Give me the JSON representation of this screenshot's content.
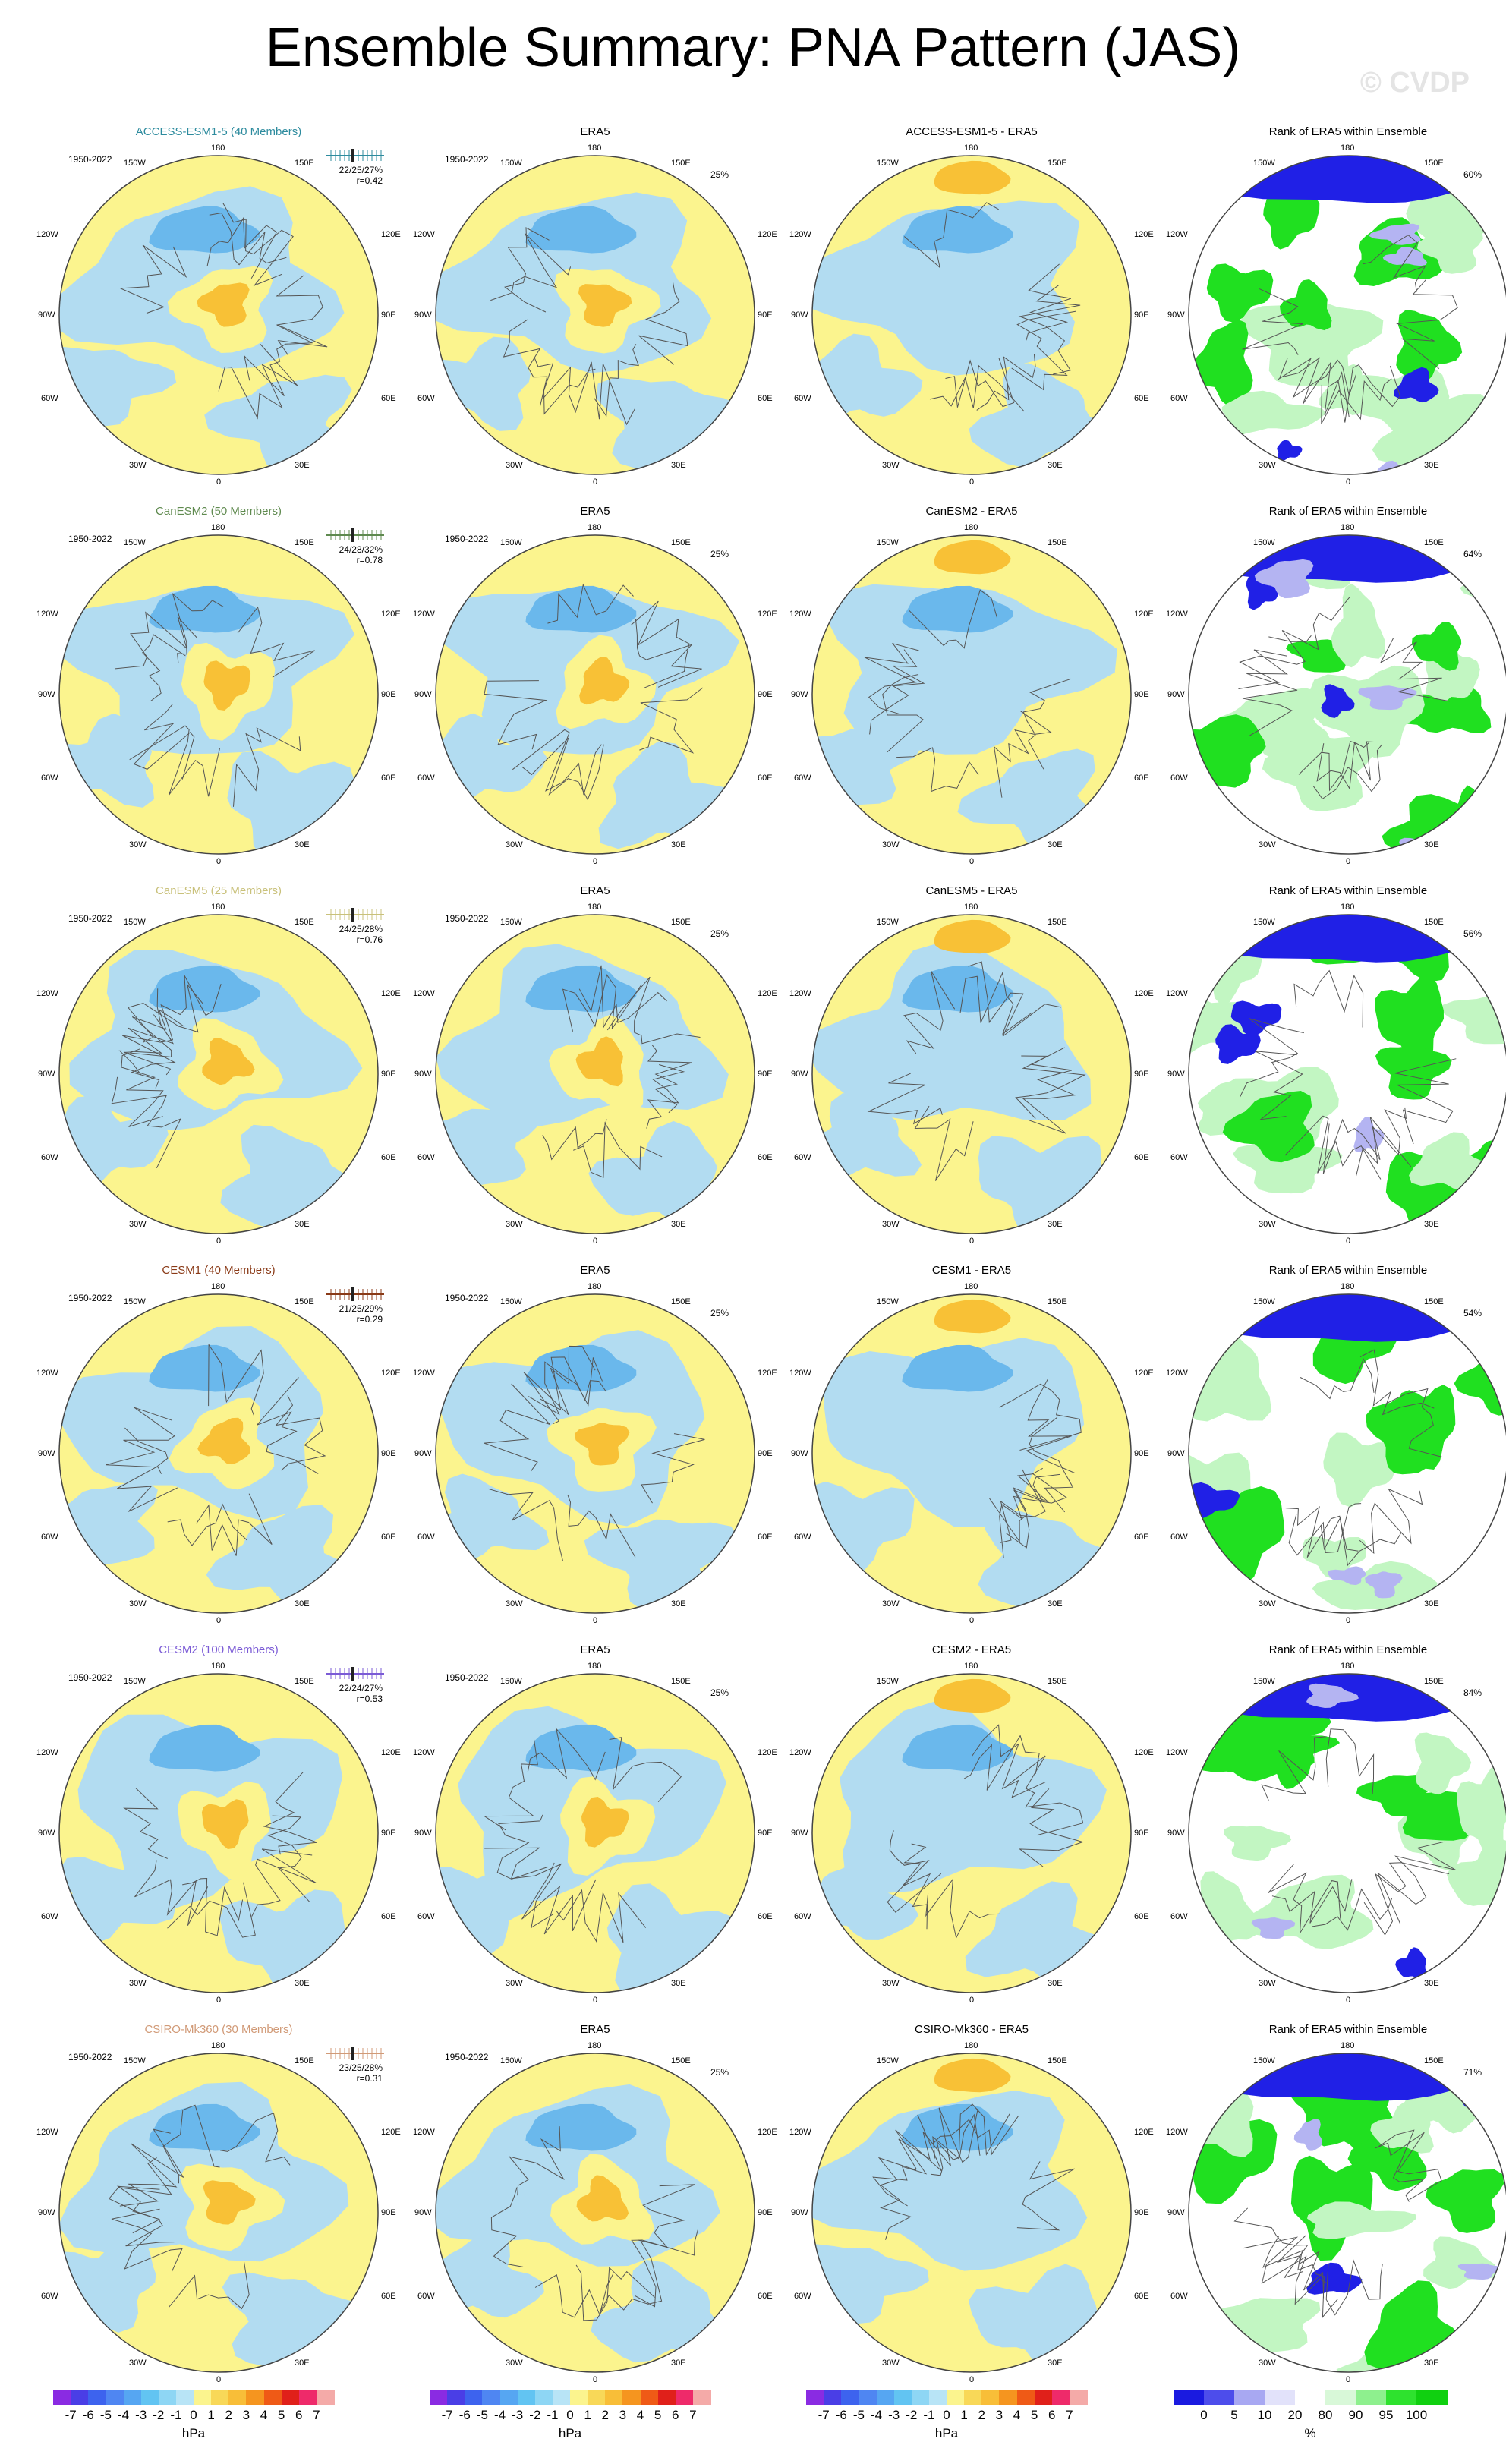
{
  "title": "Ensemble Summary: PNA Pattern (JAS)",
  "watermark": "© CVDP",
  "period": "1950-2022",
  "era5_title": "ERA5",
  "rank_title": "Rank of ERA5 within Ensemble",
  "era5_pct": "25%",
  "lon_labels": {
    "top": "180",
    "tl": "150W",
    "tr": "150E",
    "ul": "120W",
    "ur": "120E",
    "ml": "90W",
    "mr": "90E",
    "ll": "60W",
    "lr": "60E",
    "bl": "30W",
    "br": "30E",
    "bottom": "0"
  },
  "colors": {
    "pos": "#fbf48e",
    "neg": "#b2dcf1",
    "pos2": "#f8c136",
    "neg2": "#6ab8ec",
    "rank_green": "#20e020",
    "rank_lgreen": "#c2f6c2",
    "rank_blue": "#2020e6",
    "rank_lblue": "#b4b4f2"
  },
  "rows": [
    {
      "model_title": "ACCESS-ESM1-5 (40 Members)",
      "model_color": "#2d8b9e",
      "stats": [
        "22/25/27%",
        "r=0.42"
      ],
      "diff_title": "ACCESS-ESM1-5 - ERA5",
      "rank_pct": "60%"
    },
    {
      "model_title": "CanESM2 (50 Members)",
      "model_color": "#5f8a4f",
      "stats": [
        "24/28/32%",
        "r=0.78"
      ],
      "diff_title": "CanESM2 - ERA5",
      "rank_pct": "64%"
    },
    {
      "model_title": "CanESM5 (25 Members)",
      "model_color": "#c9c17b",
      "stats": [
        "24/25/28%",
        "r=0.76"
      ],
      "diff_title": "CanESM5 - ERA5",
      "rank_pct": "56%"
    },
    {
      "model_title": "CESM1 (40 Members)",
      "model_color": "#8a3a17",
      "stats": [
        "21/25/29%",
        "r=0.29"
      ],
      "diff_title": "CESM1 - ERA5",
      "rank_pct": "54%"
    },
    {
      "model_title": "CESM2 (100 Members)",
      "model_color": "#7b5bd6",
      "stats": [
        "22/24/27%",
        "r=0.53"
      ],
      "diff_title": "CESM2 - ERA5",
      "rank_pct": "84%"
    },
    {
      "model_title": "CSIRO-Mk360 (30 Members)",
      "model_color": "#d19a77",
      "stats": [
        "23/25/28%",
        "r=0.31"
      ],
      "diff_title": "CSIRO-Mk360 - ERA5",
      "rank_pct": "71%"
    }
  ],
  "colorbar_hpa": {
    "ticks": [
      "-7",
      "-6",
      "-5",
      "-4",
      "-3",
      "-2",
      "-1",
      "0",
      "1",
      "2",
      "3",
      "4",
      "5",
      "6",
      "7"
    ],
    "colors": [
      "#8a2be2",
      "#4a3ee6",
      "#3d63ee",
      "#4f86f2",
      "#56a6f2",
      "#62c4f2",
      "#8ed6f4",
      "#b8e4f6",
      "#fbf48e",
      "#f8d858",
      "#f8be38",
      "#f5951f",
      "#ef5a16",
      "#e0201a",
      "#ee2a6a",
      "#f4aaa8"
    ],
    "unit": "hPa"
  },
  "colorbar_rank": {
    "ticks": [
      "0",
      "5",
      "10",
      "20",
      "80",
      "90",
      "95",
      "100"
    ],
    "colors": [
      "#1a1ae0",
      "#4d4deb",
      "#a8a8f2",
      "#e2e2fa",
      "#ffffff",
      "#d8f8d8",
      "#8ef08e",
      "#2ee22e",
      "#10d010"
    ],
    "unit": "%"
  }
}
